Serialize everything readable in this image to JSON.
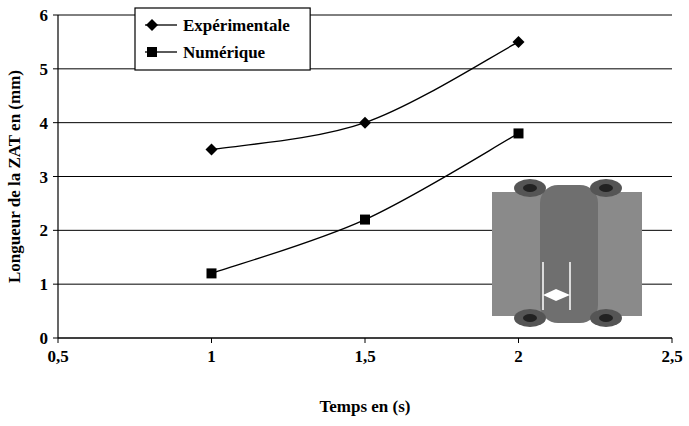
{
  "chart_data": {
    "type": "line",
    "x_label": "Temps en (s)",
    "y_label": "Longueur de la ZAT en (mm)",
    "xlim": [
      0.5,
      2.5
    ],
    "xticks": [
      {
        "value": 0.5,
        "label": "0,5"
      },
      1,
      {
        "value": 1.5,
        "label": "1,5"
      },
      2,
      {
        "value": 2.5,
        "label": "2,5"
      }
    ],
    "ylim": [
      0,
      6
    ],
    "yticks": [
      0,
      1,
      2,
      3,
      4,
      5,
      6
    ],
    "grid": true,
    "legend": "top-left",
    "series": [
      {
        "name": "Expérimentale",
        "color": "#000000",
        "marker": "diamond",
        "line_style": "smooth",
        "x": [
          1,
          1.5,
          2
        ],
        "values": [
          3.5,
          4,
          5.5
        ]
      },
      {
        "name": "Numérique",
        "color": "#000000",
        "marker": "square",
        "line_style": "smooth",
        "x": [
          1,
          1.5,
          2
        ],
        "values": [
          1.2,
          2.2,
          3.8
        ]
      }
    ]
  }
}
